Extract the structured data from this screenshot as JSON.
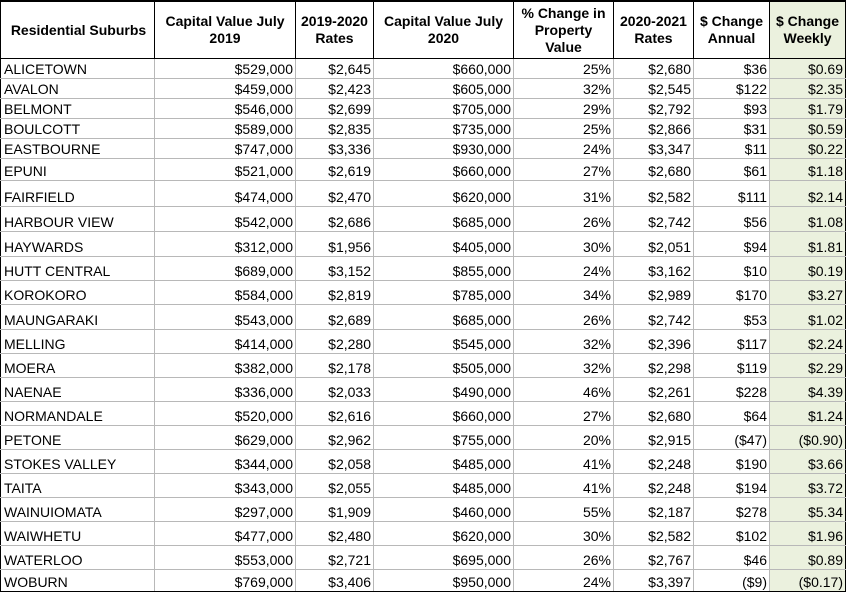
{
  "table": {
    "headers": [
      "Residential Suburbs",
      "Capital Value July 2019",
      "2019-2020 Rates",
      "Capital Value July 2020",
      "% Change in Property Value",
      "2020-2021 Rates",
      "$ Change Annual",
      "$ Change Weekly"
    ],
    "rows": [
      [
        "ALICETOWN",
        "$529,000",
        "$2,645",
        "$660,000",
        "25%",
        "$2,680",
        "$36",
        "$0.69"
      ],
      [
        "AVALON",
        "$459,000",
        "$2,423",
        "$605,000",
        "32%",
        "$2,545",
        "$122",
        "$2.35"
      ],
      [
        "BELMONT",
        "$546,000",
        "$2,699",
        "$705,000",
        "29%",
        "$2,792",
        "$93",
        "$1.79"
      ],
      [
        "BOULCOTT",
        "$589,000",
        "$2,835",
        "$735,000",
        "25%",
        "$2,866",
        "$31",
        "$0.59"
      ],
      [
        "EASTBOURNE",
        "$747,000",
        "$3,336",
        "$930,000",
        "24%",
        "$3,347",
        "$11",
        "$0.22"
      ],
      [
        "EPUNI",
        "$521,000",
        "$2,619",
        "$660,000",
        "27%",
        "$2,680",
        "$61",
        "$1.18"
      ],
      [
        "FAIRFIELD",
        "$474,000",
        "$2,470",
        "$620,000",
        "31%",
        "$2,582",
        "$111",
        "$2.14"
      ],
      [
        "HARBOUR VIEW",
        "$542,000",
        "$2,686",
        "$685,000",
        "26%",
        "$2,742",
        "$56",
        "$1.08"
      ],
      [
        "HAYWARDS",
        "$312,000",
        "$1,956",
        "$405,000",
        "30%",
        "$2,051",
        "$94",
        "$1.81"
      ],
      [
        "HUTT CENTRAL",
        "$689,000",
        "$3,152",
        "$855,000",
        "24%",
        "$3,162",
        "$10",
        "$0.19"
      ],
      [
        "KOROKORO",
        "$584,000",
        "$2,819",
        "$785,000",
        "34%",
        "$2,989",
        "$170",
        "$3.27"
      ],
      [
        "MAUNGARAKI",
        "$543,000",
        "$2,689",
        "$685,000",
        "26%",
        "$2,742",
        "$53",
        "$1.02"
      ],
      [
        "MELLING",
        "$414,000",
        "$2,280",
        "$545,000",
        "32%",
        "$2,396",
        "$117",
        "$2.24"
      ],
      [
        "MOERA",
        "$382,000",
        "$2,178",
        "$505,000",
        "32%",
        "$2,298",
        "$119",
        "$2.29"
      ],
      [
        "NAENAE",
        "$336,000",
        "$2,033",
        "$490,000",
        "46%",
        "$2,261",
        "$228",
        "$4.39"
      ],
      [
        "NORMANDALE",
        "$520,000",
        "$2,616",
        "$660,000",
        "27%",
        "$2,680",
        "$64",
        "$1.24"
      ],
      [
        "PETONE",
        "$629,000",
        "$2,962",
        "$755,000",
        "20%",
        "$2,915",
        "($47)",
        "($0.90)"
      ],
      [
        "STOKES VALLEY",
        "$344,000",
        "$2,058",
        "$485,000",
        "41%",
        "$2,248",
        "$190",
        "$3.66"
      ],
      [
        "TAITA",
        "$343,000",
        "$2,055",
        "$485,000",
        "41%",
        "$2,248",
        "$194",
        "$3.72"
      ],
      [
        "WAINUIOMATA",
        "$297,000",
        "$1,909",
        "$460,000",
        "55%",
        "$2,187",
        "$278",
        "$5.34"
      ],
      [
        "WAIWHETU",
        "$477,000",
        "$2,480",
        "$620,000",
        "30%",
        "$2,582",
        "$102",
        "$1.96"
      ],
      [
        "WATERLOO",
        "$553,000",
        "$2,721",
        "$695,000",
        "26%",
        "$2,767",
        "$46",
        "$0.89"
      ],
      [
        "WOBURN",
        "$769,000",
        "$3,406",
        "$950,000",
        "24%",
        "$3,397",
        "($9)",
        "($0.17)"
      ]
    ]
  },
  "colors": {
    "weekly_column_fill": "#ebf1de",
    "grid_line": "#b8b8b8",
    "outer_border": "#000000"
  }
}
